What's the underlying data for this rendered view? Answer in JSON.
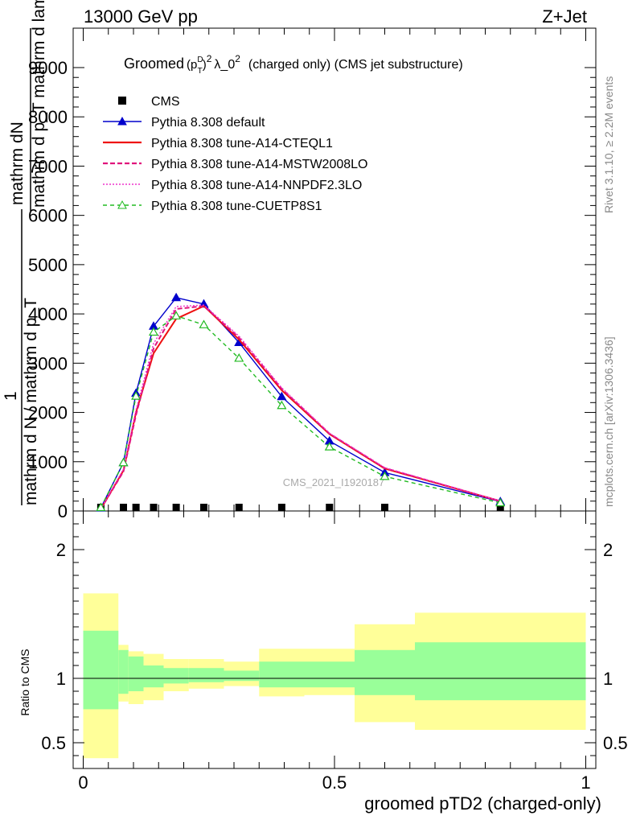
{
  "header": {
    "left": "13000 GeV pp",
    "right": "Z+Jet"
  },
  "side_text": {
    "rivet": "Rivet 3.1.10, ≥ 2.2M events",
    "mcplots": "mcplots.cern.ch [arXiv:1306.3436]"
  },
  "watermark": "CMS_2021_I1920187",
  "title": {
    "groomed": "Groomed",
    "paren_open": "(p",
    "sup_D": "D",
    "sub_T": "T",
    "paren_close": ")",
    "sup_2": "2",
    "lambda": "λ_0",
    "sup_2b": "2",
    "rest": "(charged only) (CMS jet substructure)"
  },
  "y_label_main": {
    "line1": "mathrm dN",
    "line2": "mathrm d p_T mathrm d lambda",
    "sub_T": "T",
    "numer": "1",
    "denom": "mathrm d N / mathrm d p_T",
    "sub_T2": "T"
  },
  "y_label_ratio": "Ratio to CMS",
  "x_label": "groomed pTD2 (charged-only)",
  "colors": {
    "cms": "#000000",
    "default": "#0000cc",
    "cteql1": "#ee1111",
    "mstw": "#e0137c",
    "nnpdf": "#ee33cc",
    "cuetp8s1": "#22bb22",
    "band_outer": "#ffff99",
    "band_inner": "#99ff99"
  },
  "chart_data": {
    "type": "line",
    "xlim": [
      -0.02,
      1.02
    ],
    "ylim_main": [
      0,
      9800
    ],
    "ylim_ratio": [
      0.3,
      2.3
    ],
    "x_ticks": [
      0,
      0.5,
      1
    ],
    "x_tick_labels": [
      "0",
      "0.5",
      "1"
    ],
    "y_ticks_main": [
      0,
      1000,
      2000,
      3000,
      4000,
      5000,
      6000,
      7000,
      8000,
      9000
    ],
    "y_tick_labels_main": [
      "0",
      "1000",
      "2000",
      "3000",
      "4000",
      "5000",
      "6000",
      "7000",
      "8000",
      "9000"
    ],
    "y_ticks_ratio": [
      0.5,
      1,
      2
    ],
    "y_tick_labels_ratio": [
      "0.5",
      "1",
      "2"
    ],
    "legend_position": "top-left",
    "x": [
      0.035,
      0.08,
      0.105,
      0.14,
      0.185,
      0.24,
      0.31,
      0.395,
      0.49,
      0.6,
      0.83
    ],
    "series": [
      {
        "name": "CMS",
        "key": "cms",
        "style": "marker-square",
        "values": [
          0,
          0,
          0,
          0,
          0,
          0,
          0,
          0,
          0,
          0,
          0
        ]
      },
      {
        "name": "Pythia 8.308 default",
        "key": "default",
        "style": "solid-triangle",
        "values": [
          60,
          980,
          2390,
          3750,
          4330,
          4200,
          3420,
          2320,
          1420,
          780,
          190
        ]
      },
      {
        "name": "Pythia 8.308 tune-A14-CTEQL1",
        "key": "cteql1",
        "style": "solid",
        "values": [
          40,
          820,
          2000,
          3200,
          3900,
          4160,
          3480,
          2450,
          1560,
          860,
          200
        ]
      },
      {
        "name": "Pythia 8.308 tune-A14-MSTW2008LO",
        "key": "mstw",
        "style": "dashed",
        "values": [
          40,
          800,
          1950,
          3300,
          4100,
          4160,
          3520,
          2480,
          1570,
          870,
          200
        ]
      },
      {
        "name": "Pythia 8.308 tune-A14-NNPDF2.3LO",
        "key": "nnpdf",
        "style": "dotted",
        "values": [
          45,
          850,
          2050,
          3400,
          4150,
          4180,
          3550,
          2500,
          1580,
          880,
          205
        ]
      },
      {
        "name": "Pythia 8.308 tune-CUETP8S1",
        "key": "cuetp8s1",
        "style": "dashed-open-triangle",
        "values": [
          70,
          980,
          2330,
          3630,
          3960,
          3780,
          3100,
          2140,
          1300,
          700,
          165
        ]
      }
    ],
    "ratio_bands": {
      "edges": [
        0,
        0.07,
        0.09,
        0.12,
        0.16,
        0.21,
        0.28,
        0.35,
        0.44,
        0.54,
        0.66,
        1.0
      ],
      "outer_low": [
        0.38,
        0.82,
        0.8,
        0.83,
        0.9,
        0.92,
        0.94,
        0.86,
        0.87,
        0.66,
        0.6
      ],
      "outer_high": [
        1.66,
        1.26,
        1.21,
        1.19,
        1.15,
        1.15,
        1.13,
        1.23,
        1.23,
        1.42,
        1.51
      ],
      "inner_low": [
        0.76,
        0.88,
        0.9,
        0.93,
        0.96,
        0.97,
        0.98,
        0.93,
        0.93,
        0.87,
        0.83
      ],
      "inner_high": [
        1.37,
        1.22,
        1.17,
        1.1,
        1.08,
        1.08,
        1.06,
        1.13,
        1.13,
        1.22,
        1.28
      ]
    },
    "ratio_line": 1
  }
}
